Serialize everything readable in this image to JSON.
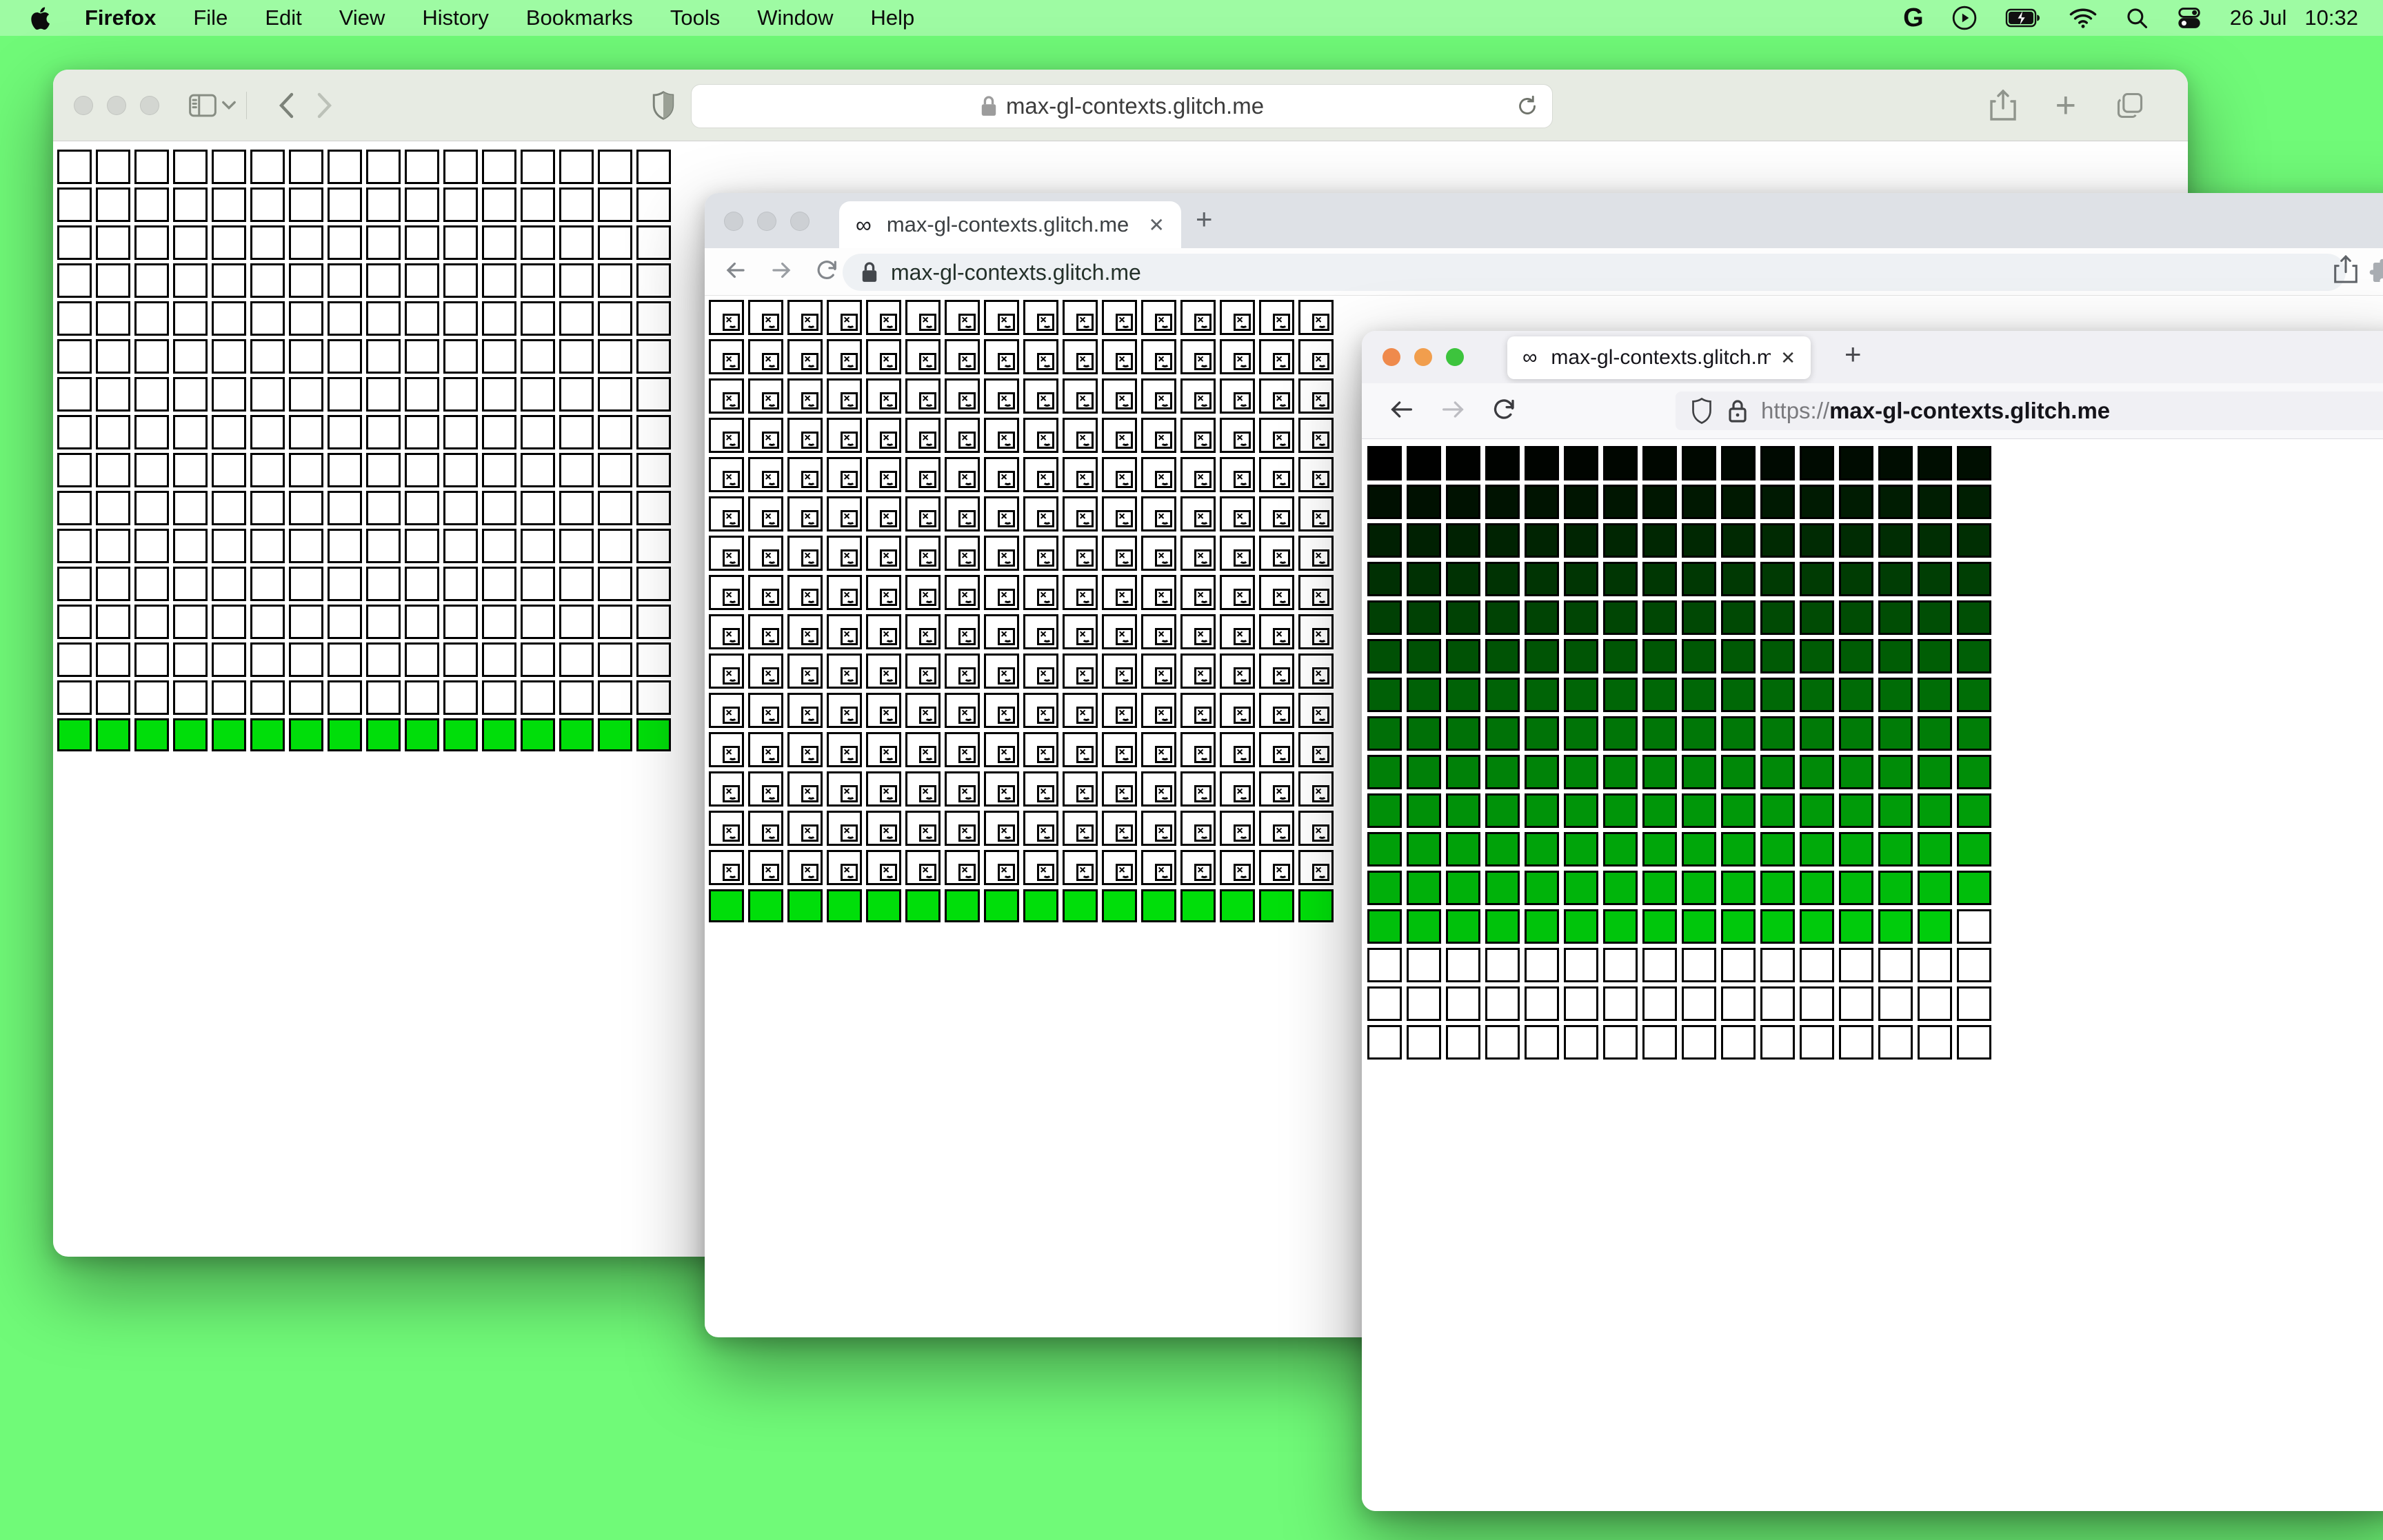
{
  "desktop": {
    "background_color": "#70fa78"
  },
  "menu_bar": {
    "app_name": "Firefox",
    "items": [
      "File",
      "Edit",
      "View",
      "History",
      "Bookmarks",
      "Tools",
      "Window",
      "Help"
    ],
    "status_icons": [
      "google-icon",
      "play-circle-icon",
      "battery-charging-icon",
      "wifi-icon",
      "search-icon",
      "control-center-icon"
    ],
    "status_date": "26 Jul",
    "status_time": "10:32"
  },
  "glyphs": {
    "infinity": "∞",
    "close": "✕",
    "plus": "+",
    "google": "G"
  },
  "green_cell_color": "#00de0a",
  "safari_window": {
    "url": "max-gl-contexts.glitch.me",
    "grid": {
      "columns": 16,
      "white_rows": 15,
      "has_green_row": true
    }
  },
  "chrome_window": {
    "tab_title": "max-gl-contexts.glitch.me",
    "url": "max-gl-contexts.glitch.me",
    "grid": {
      "columns": 16,
      "broken_image_rows": 15,
      "has_green_row": true
    }
  },
  "firefox_window": {
    "tab_title": "max-gl-contexts.glitch.me/",
    "url_scheme": "https://",
    "url_host": "max-gl-contexts.glitch.me",
    "grid": {
      "columns": 16,
      "rows": 16,
      "colored_cells": 207,
      "gradient_from": "#000000",
      "gradient_to": "#00cd0c"
    }
  }
}
